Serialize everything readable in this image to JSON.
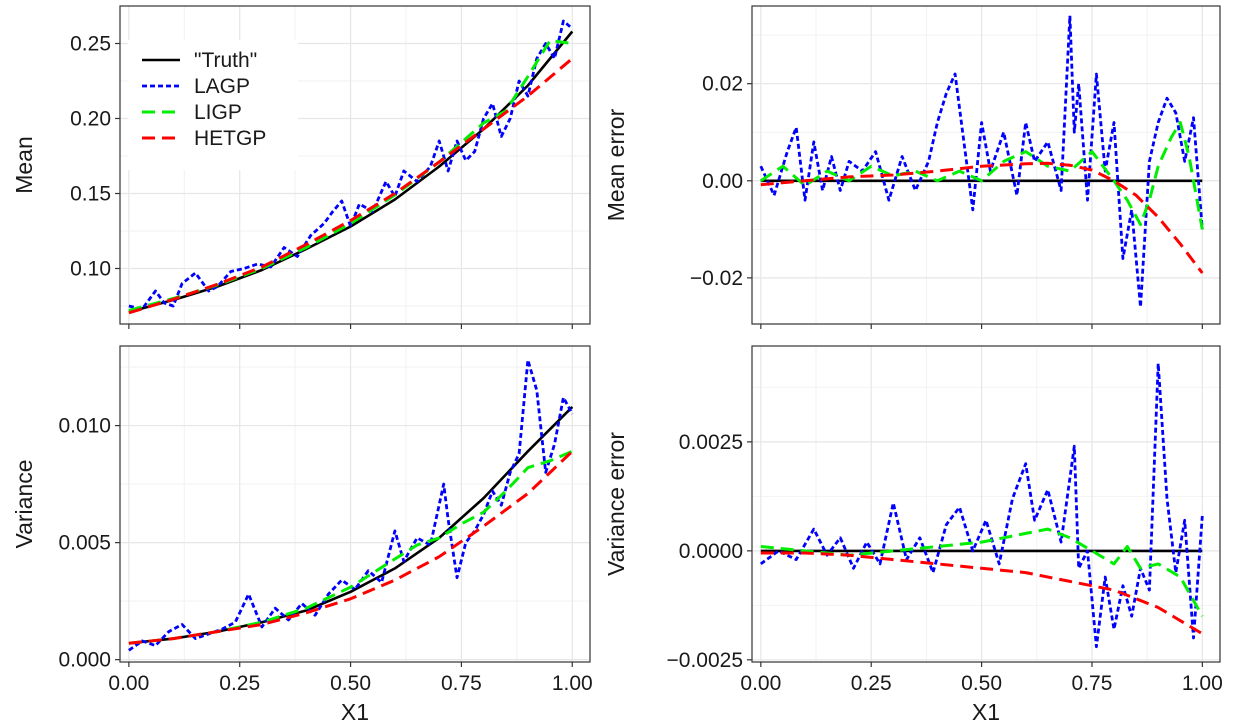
{
  "colors": {
    "truth": "#000000",
    "lagp": "#0000ff",
    "ligp": "#00ee00",
    "hetgp": "#ff0000",
    "grid_major": "#e6e6e6",
    "grid_minor": "#f2f2f2",
    "panel_border": "#333333"
  },
  "chart_data": [
    {
      "id": "mean",
      "type": "line",
      "title": "",
      "xlabel": "",
      "ylabel": "Mean",
      "xlim": [
        -0.02,
        1.04
      ],
      "ylim": [
        0.063,
        0.275
      ],
      "xticks": [
        0,
        0.25,
        0.5,
        0.75,
        1
      ],
      "xtick_labels": [
        "0.00",
        "0.25",
        "0.50",
        "0.75",
        "1.00"
      ],
      "show_xtick_labels": false,
      "yticks": [
        0.1,
        0.15,
        0.2,
        0.25
      ],
      "ytick_labels": [
        "0.10",
        "0.15",
        "0.20",
        "0.25"
      ],
      "grid": true,
      "legend": {
        "position": "top-left",
        "entries": [
          {
            "name": "\"Truth\"",
            "color": "#000000",
            "dash": "solid"
          },
          {
            "name": "LAGP",
            "color": "#0000ff",
            "dash": "dotted"
          },
          {
            "name": "LIGP",
            "color": "#00ee00",
            "dash": "dashed"
          },
          {
            "name": "HETGP",
            "color": "#ff0000",
            "dash": "dashed"
          }
        ]
      },
      "series": [
        {
          "name": "\"Truth\"",
          "color": "#000000",
          "dash": "solid",
          "x": [
            0,
            0.1,
            0.2,
            0.3,
            0.4,
            0.5,
            0.6,
            0.7,
            0.8,
            0.9,
            1.0
          ],
          "y": [
            0.071,
            0.079,
            0.088,
            0.099,
            0.113,
            0.128,
            0.146,
            0.168,
            0.193,
            0.222,
            0.258
          ]
        },
        {
          "name": "LAGP",
          "color": "#0000ff",
          "dash": "dotted",
          "x": [
            0,
            0.03,
            0.06,
            0.08,
            0.1,
            0.12,
            0.15,
            0.18,
            0.2,
            0.23,
            0.26,
            0.29,
            0.32,
            0.35,
            0.38,
            0.41,
            0.44,
            0.46,
            0.48,
            0.5,
            0.52,
            0.55,
            0.58,
            0.6,
            0.62,
            0.65,
            0.68,
            0.7,
            0.72,
            0.74,
            0.76,
            0.78,
            0.8,
            0.82,
            0.84,
            0.86,
            0.88,
            0.9,
            0.92,
            0.94,
            0.96,
            0.98,
            1.0
          ],
          "y": [
            0.075,
            0.073,
            0.085,
            0.077,
            0.075,
            0.09,
            0.097,
            0.085,
            0.088,
            0.098,
            0.1,
            0.103,
            0.101,
            0.114,
            0.108,
            0.122,
            0.13,
            0.138,
            0.145,
            0.128,
            0.143,
            0.138,
            0.158,
            0.148,
            0.165,
            0.158,
            0.168,
            0.185,
            0.165,
            0.185,
            0.172,
            0.178,
            0.2,
            0.21,
            0.188,
            0.2,
            0.225,
            0.215,
            0.24,
            0.25,
            0.24,
            0.265,
            0.26
          ]
        },
        {
          "name": "LIGP",
          "color": "#00ee00",
          "dash": "dashed",
          "x": [
            0,
            0.1,
            0.2,
            0.3,
            0.4,
            0.5,
            0.6,
            0.7,
            0.8,
            0.85,
            0.9,
            0.95,
            1.0
          ],
          "y": [
            0.072,
            0.08,
            0.089,
            0.1,
            0.114,
            0.13,
            0.149,
            0.171,
            0.197,
            0.205,
            0.228,
            0.252,
            0.25
          ]
        },
        {
          "name": "HETGP",
          "color": "#ff0000",
          "dash": "dashed",
          "x": [
            0,
            0.1,
            0.2,
            0.3,
            0.4,
            0.5,
            0.6,
            0.7,
            0.8,
            0.9,
            1.0
          ],
          "y": [
            0.0705,
            0.0795,
            0.0895,
            0.101,
            0.116,
            0.132,
            0.15,
            0.171,
            0.193,
            0.215,
            0.24
          ]
        }
      ]
    },
    {
      "id": "mean-error",
      "type": "line",
      "title": "",
      "xlabel": "",
      "ylabel": "Mean error",
      "xlim": [
        -0.02,
        1.04
      ],
      "ylim": [
        -0.0295,
        0.036
      ],
      "xticks": [
        0,
        0.25,
        0.5,
        0.75,
        1
      ],
      "xtick_labels": [
        "0.00",
        "0.25",
        "0.50",
        "0.75",
        "1.00"
      ],
      "show_xtick_labels": false,
      "yticks": [
        -0.02,
        0,
        0.02
      ],
      "ytick_labels": [
        "−0.02",
        "0.00",
        "0.02"
      ],
      "grid": true,
      "series": [
        {
          "name": "\"Truth\"",
          "color": "#000000",
          "dash": "solid",
          "x": [
            0,
            1.0
          ],
          "y": [
            0,
            0
          ]
        },
        {
          "name": "LAGP",
          "color": "#0000ff",
          "dash": "dotted",
          "x": [
            0,
            0.03,
            0.06,
            0.08,
            0.1,
            0.12,
            0.14,
            0.16,
            0.18,
            0.2,
            0.23,
            0.26,
            0.29,
            0.32,
            0.35,
            0.38,
            0.4,
            0.42,
            0.44,
            0.46,
            0.48,
            0.5,
            0.52,
            0.55,
            0.58,
            0.6,
            0.62,
            0.65,
            0.68,
            0.7,
            0.71,
            0.72,
            0.74,
            0.76,
            0.78,
            0.8,
            0.82,
            0.84,
            0.86,
            0.88,
            0.9,
            0.92,
            0.94,
            0.96,
            0.98,
            1.0
          ],
          "y": [
            0.003,
            -0.003,
            0.006,
            0.011,
            -0.004,
            0.008,
            -0.002,
            0.005,
            -0.002,
            0.004,
            0.002,
            0.006,
            -0.004,
            0.005,
            -0.002,
            0.004,
            0.012,
            0.018,
            0.022,
            0.008,
            -0.006,
            0.012,
            0.002,
            0.01,
            -0.003,
            0.012,
            0.004,
            0.008,
            -0.002,
            0.034,
            0.01,
            0.02,
            -0.004,
            0.022,
            0.002,
            0.012,
            -0.016,
            -0.006,
            -0.026,
            0.004,
            0.012,
            0.017,
            0.014,
            0.004,
            0.013,
            -0.01
          ]
        },
        {
          "name": "LIGP",
          "color": "#00ee00",
          "dash": "dashed",
          "x": [
            0,
            0.05,
            0.1,
            0.15,
            0.2,
            0.25,
            0.3,
            0.35,
            0.4,
            0.45,
            0.5,
            0.55,
            0.6,
            0.65,
            0.7,
            0.75,
            0.8,
            0.83,
            0.86,
            0.88,
            0.9,
            0.93,
            0.95,
            0.97,
            1.0
          ],
          "y": [
            0.0,
            0.003,
            -0.001,
            0.002,
            0.0,
            0.003,
            0.001,
            0.002,
            0.0,
            0.002,
            0.0,
            0.004,
            0.006,
            0.003,
            0.002,
            0.006,
            0.0,
            -0.004,
            -0.009,
            -0.004,
            0.003,
            0.009,
            0.012,
            0.005,
            -0.01
          ]
        },
        {
          "name": "HETGP",
          "color": "#ff0000",
          "dash": "dashed",
          "x": [
            0,
            0.1,
            0.2,
            0.3,
            0.4,
            0.5,
            0.6,
            0.65,
            0.7,
            0.75,
            0.8,
            0.85,
            0.9,
            0.95,
            1.0
          ],
          "y": [
            -0.0008,
            0.0,
            0.0008,
            0.0012,
            0.002,
            0.003,
            0.0035,
            0.0036,
            0.0032,
            0.0022,
            0.0,
            -0.003,
            -0.0075,
            -0.013,
            -0.019
          ]
        }
      ]
    },
    {
      "id": "variance",
      "type": "line",
      "title": "",
      "xlabel": "X1",
      "ylabel": "Variance",
      "xlim": [
        -0.02,
        1.04
      ],
      "ylim": [
        -0.0001,
        0.0134
      ],
      "xticks": [
        0,
        0.25,
        0.5,
        0.75,
        1
      ],
      "xtick_labels": [
        "0.00",
        "0.25",
        "0.50",
        "0.75",
        "1.00"
      ],
      "show_xtick_labels": true,
      "yticks": [
        0,
        0.005,
        0.01
      ],
      "ytick_labels": [
        "0.000",
        "0.005",
        "0.010"
      ],
      "grid": true,
      "series": [
        {
          "name": "\"Truth\"",
          "color": "#000000",
          "dash": "solid",
          "x": [
            0,
            0.1,
            0.2,
            0.3,
            0.4,
            0.5,
            0.6,
            0.7,
            0.8,
            0.9,
            1.0
          ],
          "y": [
            0.0007,
            0.0009,
            0.0012,
            0.0016,
            0.0021,
            0.0029,
            0.0039,
            0.0052,
            0.0069,
            0.0089,
            0.0108
          ]
        },
        {
          "name": "LAGP",
          "color": "#0000ff",
          "dash": "dotted",
          "x": [
            0,
            0.03,
            0.06,
            0.09,
            0.12,
            0.15,
            0.18,
            0.21,
            0.24,
            0.27,
            0.3,
            0.33,
            0.36,
            0.39,
            0.42,
            0.45,
            0.48,
            0.51,
            0.54,
            0.57,
            0.6,
            0.62,
            0.65,
            0.68,
            0.71,
            0.72,
            0.74,
            0.76,
            0.78,
            0.8,
            0.82,
            0.84,
            0.86,
            0.88,
            0.9,
            0.92,
            0.94,
            0.96,
            0.98,
            1.0
          ],
          "y": [
            0.0004,
            0.0008,
            0.0006,
            0.0012,
            0.0015,
            0.0009,
            0.0011,
            0.0013,
            0.0016,
            0.0028,
            0.0014,
            0.0022,
            0.0017,
            0.0024,
            0.0019,
            0.0028,
            0.0034,
            0.003,
            0.0038,
            0.0033,
            0.0055,
            0.0042,
            0.0052,
            0.0049,
            0.0075,
            0.006,
            0.0035,
            0.005,
            0.0055,
            0.0062,
            0.0072,
            0.0066,
            0.008,
            0.0088,
            0.0128,
            0.0115,
            0.008,
            0.0092,
            0.0112,
            0.0105
          ]
        },
        {
          "name": "LIGP",
          "color": "#00ee00",
          "dash": "dashed",
          "x": [
            0,
            0.1,
            0.2,
            0.3,
            0.4,
            0.5,
            0.6,
            0.65,
            0.7,
            0.75,
            0.8,
            0.85,
            0.9,
            0.95,
            1.0
          ],
          "y": [
            0.0007,
            0.0009,
            0.0012,
            0.0016,
            0.0022,
            0.0031,
            0.0043,
            0.0049,
            0.0052,
            0.0058,
            0.0063,
            0.0072,
            0.0082,
            0.0085,
            0.0089
          ]
        },
        {
          "name": "HETGP",
          "color": "#ff0000",
          "dash": "dashed",
          "x": [
            0,
            0.1,
            0.2,
            0.3,
            0.4,
            0.5,
            0.6,
            0.7,
            0.8,
            0.9,
            1.0
          ],
          "y": [
            0.0007,
            0.0009,
            0.0012,
            0.0015,
            0.002,
            0.0026,
            0.0034,
            0.0044,
            0.0057,
            0.0071,
            0.0089
          ]
        }
      ]
    },
    {
      "id": "variance-error",
      "type": "line",
      "title": "",
      "xlabel": "X1",
      "ylabel": "Variance error",
      "xlim": [
        -0.02,
        1.04
      ],
      "ylim": [
        -0.00255,
        0.0047
      ],
      "xticks": [
        0,
        0.25,
        0.5,
        0.75,
        1
      ],
      "xtick_labels": [
        "0.00",
        "0.25",
        "0.50",
        "0.75",
        "1.00"
      ],
      "show_xtick_labels": true,
      "yticks": [
        -0.0025,
        0,
        0.0025
      ],
      "ytick_labels": [
        "−0.0025",
        "0.0000",
        "0.0025"
      ],
      "grid": true,
      "series": [
        {
          "name": "\"Truth\"",
          "color": "#000000",
          "dash": "solid",
          "x": [
            0,
            1.0
          ],
          "y": [
            0,
            0
          ]
        },
        {
          "name": "LAGP",
          "color": "#0000ff",
          "dash": "dotted",
          "x": [
            0,
            0.04,
            0.08,
            0.12,
            0.15,
            0.18,
            0.21,
            0.24,
            0.27,
            0.3,
            0.33,
            0.36,
            0.39,
            0.42,
            0.45,
            0.48,
            0.51,
            0.54,
            0.57,
            0.6,
            0.62,
            0.65,
            0.68,
            0.71,
            0.72,
            0.74,
            0.76,
            0.78,
            0.8,
            0.82,
            0.84,
            0.86,
            0.88,
            0.9,
            0.92,
            0.94,
            0.96,
            0.98,
            1.0
          ],
          "y": [
            -0.0003,
            0.0,
            -0.0002,
            0.0005,
            -0.0001,
            0.0003,
            -0.0004,
            0.0002,
            -0.0003,
            0.0011,
            -0.0002,
            0.0003,
            -0.0005,
            0.0006,
            0.001,
            0.0,
            0.0007,
            -0.0003,
            0.0012,
            0.002,
            0.0007,
            0.0014,
            0.0002,
            0.0024,
            -0.0004,
            0.0,
            -0.0022,
            -0.0006,
            -0.0018,
            -0.0008,
            -0.0015,
            -0.0004,
            -0.0009,
            0.0043,
            0.0012,
            -0.0005,
            0.0007,
            -0.002,
            0.0008
          ]
        },
        {
          "name": "LIGP",
          "color": "#00ee00",
          "dash": "dashed",
          "x": [
            0,
            0.1,
            0.2,
            0.3,
            0.4,
            0.5,
            0.55,
            0.6,
            0.65,
            0.7,
            0.75,
            0.8,
            0.83,
            0.86,
            0.9,
            0.95,
            1.0
          ],
          "y": [
            0.0001,
            0.0,
            -0.0001,
            0.0,
            0.0001,
            0.0002,
            0.0003,
            0.0004,
            0.0005,
            0.0003,
            0.0,
            -0.0003,
            0.0001,
            -0.0004,
            -0.0003,
            -0.0006,
            -0.0015
          ]
        },
        {
          "name": "HETGP",
          "color": "#ff0000",
          "dash": "dashed",
          "x": [
            0,
            0.1,
            0.2,
            0.3,
            0.4,
            0.5,
            0.6,
            0.7,
            0.8,
            0.9,
            1.0
          ],
          "y": [
            -5e-05,
            -5e-05,
            -0.0001,
            -0.0002,
            -0.0003,
            -0.0004,
            -0.0005,
            -0.0007,
            -0.0009,
            -0.0013,
            -0.0019
          ]
        }
      ]
    }
  ]
}
